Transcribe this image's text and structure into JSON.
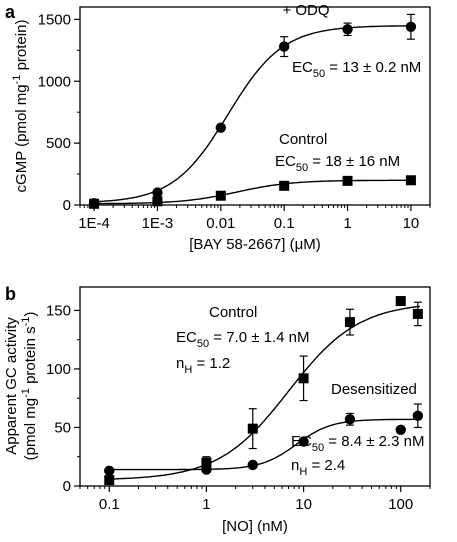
{
  "chart_data": [
    {
      "panel_label": "a",
      "type": "scatter",
      "x_scale": "log",
      "xlabel": "[BAY 58-2667] (μM)",
      "ylabel": "cGMP (pmol mg",
      "ylabel_sup": "-1",
      "ylabel_tail": " protein)",
      "xlim": [
        0.0001,
        10
      ],
      "ylim": [
        0,
        1600
      ],
      "x_ticks": [
        {
          "value": 0.0001,
          "label": "1E-4"
        },
        {
          "value": 0.001,
          "label": "1E-3"
        },
        {
          "value": 0.01,
          "label": "0.01"
        },
        {
          "value": 0.1,
          "label": "0.1"
        },
        {
          "value": 1,
          "label": "1"
        },
        {
          "value": 10,
          "label": "10"
        }
      ],
      "y_ticks": [
        0,
        500,
        1000,
        1500
      ],
      "series": [
        {
          "marker": "circle",
          "x": [
            0.0001,
            0.001,
            0.01,
            0.1,
            1,
            10
          ],
          "y": [
            15,
            100,
            625,
            1280,
            1420,
            1440
          ],
          "err": [
            0,
            0,
            0,
            80,
            50,
            100
          ],
          "fit": {
            "bottom": 15,
            "top": 1450,
            "ec50": 0.013,
            "hill": 1
          }
        },
        {
          "marker": "square",
          "x": [
            0.0001,
            0.001,
            0.01,
            0.1,
            1,
            10
          ],
          "y": [
            10,
            30,
            75,
            155,
            195,
            200
          ],
          "err": [
            0,
            0,
            0,
            0,
            0,
            0
          ],
          "fit": {
            "bottom": 10,
            "top": 200,
            "ec50": 0.018,
            "hill": 1
          }
        }
      ],
      "annotations": [
        {
          "key": "odq",
          "text": "+ ODQ"
        },
        {
          "key": "ec_odq",
          "text": "EC",
          "sub": "50",
          "tail": " = 13 ± 0.2 nM"
        },
        {
          "key": "ctrl",
          "text": "Control"
        },
        {
          "key": "ec_ctrl",
          "text": "EC",
          "sub": "50",
          "tail": " = 18 ± 16 nM"
        }
      ]
    },
    {
      "panel_label": "b",
      "type": "scatter",
      "x_scale": "log",
      "xlabel": "[NO] (nM)",
      "ylabel_line1": "Apparent GC activity",
      "ylabel_line2": "(pmol mg",
      "ylabel_line2_sup": "-1",
      "ylabel_line2_mid": " protein s",
      "ylabel_line2_sup2": "-1",
      "ylabel_line2_tail": ")",
      "xlim": [
        0.05,
        200
      ],
      "ylim": [
        0,
        170
      ],
      "x_ticks": [
        {
          "value": 0.1,
          "label": "0.1"
        },
        {
          "value": 1,
          "label": "1"
        },
        {
          "value": 10,
          "label": "10"
        },
        {
          "value": 100,
          "label": "100"
        }
      ],
      "y_ticks": [
        0,
        50,
        100,
        150
      ],
      "series": [
        {
          "marker": "square",
          "x": [
            0.1,
            1,
            3,
            10,
            30,
            100,
            150
          ],
          "y": [
            5,
            20,
            49,
            92,
            140,
            158,
            147
          ],
          "err": [
            0,
            5,
            17,
            19,
            11,
            3,
            10
          ],
          "fit": {
            "bottom": 5,
            "top": 157,
            "ec50": 7.0,
            "hill": 1.2
          }
        },
        {
          "marker": "circle",
          "x": [
            0.1,
            1,
            3,
            10,
            30,
            100,
            150
          ],
          "y": [
            13,
            14,
            18,
            38,
            57,
            48,
            60
          ],
          "err": [
            0,
            0,
            0,
            0,
            5,
            0,
            10
          ],
          "fit": {
            "bottom": 14,
            "top": 57,
            "ec50": 8.4,
            "hill": 2.4
          }
        }
      ],
      "annotations": [
        {
          "key": "ctrl",
          "text": "Control"
        },
        {
          "key": "ec_ctrl",
          "text": "EC",
          "sub": "50",
          "tail": " = 7.0 ± 1.4 nM"
        },
        {
          "key": "nh_ctrl",
          "text": "n",
          "sub": "H",
          "tail": " = 1.2"
        },
        {
          "key": "des",
          "text": "Desensitized"
        },
        {
          "key": "ec_des",
          "text": "EC",
          "sub": "50",
          "tail": " = 8.4 ± 2.3 nM"
        },
        {
          "key": "nh_des",
          "text": "n",
          "sub": "H",
          "tail": " = 2.4"
        }
      ]
    }
  ]
}
